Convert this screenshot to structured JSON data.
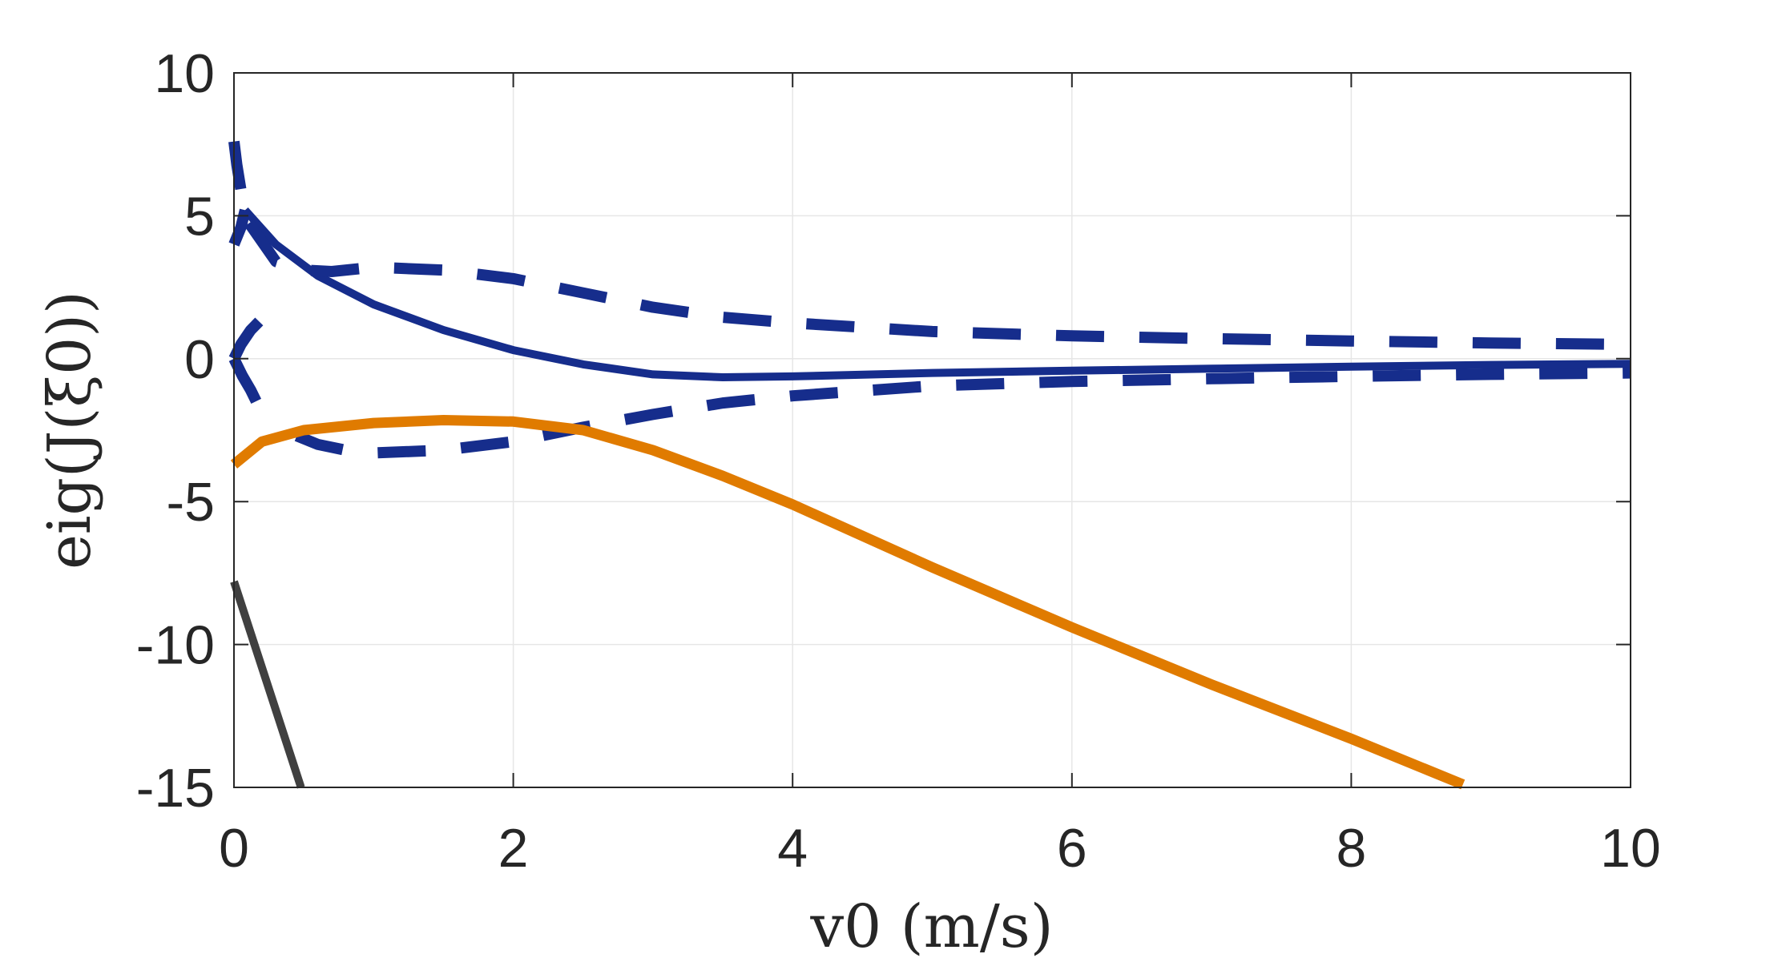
{
  "chart_data": {
    "type": "line",
    "title": "",
    "xlabel": "v0 (m/s)",
    "ylabel": "eig(J(ξ0))",
    "xlim": [
      0,
      10
    ],
    "ylim": [
      -15,
      10
    ],
    "xticks": [
      0,
      2,
      4,
      6,
      8,
      10
    ],
    "yticks": [
      -15,
      -10,
      -5,
      0,
      5,
      10
    ],
    "xtick_labels": [
      "0",
      "2",
      "4",
      "6",
      "8",
      "10"
    ],
    "ytick_labels": [
      "-15",
      "-10",
      "-5",
      "0",
      "5",
      "10"
    ],
    "grid": true,
    "series": [
      {
        "name": "blue-solid",
        "color": "#162d8c",
        "style": "solid",
        "x": [
          0.08,
          0.3,
          0.6,
          1.0,
          1.5,
          2.0,
          2.5,
          3.0,
          3.5,
          4.0,
          5.0,
          6.0,
          7.0,
          8.0,
          9.0,
          10.0
        ],
        "y": [
          5.2,
          4.0,
          2.9,
          1.9,
          1.0,
          0.3,
          -0.2,
          -0.55,
          -0.65,
          -0.62,
          -0.5,
          -0.42,
          -0.35,
          -0.28,
          -0.22,
          -0.18
        ]
      },
      {
        "name": "blue-dashed-upper",
        "color": "#162d8c",
        "style": "dashed",
        "x": [
          0.0,
          0.02,
          0.05,
          0.08,
          0.1,
          0.3,
          0.5,
          0.7,
          1.0,
          1.5,
          2.0,
          2.5,
          3.0,
          3.5,
          4.0,
          5.0,
          6.0,
          7.0,
          8.0,
          9.0,
          10.0
        ],
        "y": [
          7.6,
          6.8,
          5.9,
          5.2,
          4.8,
          3.4,
          3.1,
          3.05,
          3.2,
          3.1,
          2.8,
          2.3,
          1.8,
          1.45,
          1.25,
          0.95,
          0.8,
          0.7,
          0.62,
          0.55,
          0.5
        ]
      },
      {
        "name": "blue-dashed-upper-branch",
        "color": "#162d8c",
        "style": "dashed",
        "x": [
          0.0,
          0.05,
          0.08
        ],
        "y": [
          4.0,
          4.6,
          5.2
        ]
      },
      {
        "name": "blue-dashed-middle",
        "color": "#162d8c",
        "style": "dashed",
        "x": [
          0.0,
          0.06,
          0.12,
          0.16,
          0.18
        ],
        "y": [
          0.0,
          -0.6,
          -1.1,
          -1.5,
          -1.7
        ]
      },
      {
        "name": "blue-dashed-middle-top",
        "color": "#162d8c",
        "style": "dashed",
        "x": [
          0.0,
          0.05,
          0.12,
          0.18
        ],
        "y": [
          0.0,
          0.5,
          1.0,
          1.3
        ]
      },
      {
        "name": "blue-dashed-lower",
        "color": "#162d8c",
        "style": "dashed",
        "x": [
          0.45,
          0.6,
          0.8,
          1.0,
          1.5,
          2.0,
          2.5,
          3.0,
          3.5,
          4.0,
          5.0,
          6.0,
          7.0,
          8.0,
          9.0,
          10.0
        ],
        "y": [
          -2.7,
          -3.0,
          -3.2,
          -3.3,
          -3.2,
          -2.9,
          -2.4,
          -1.95,
          -1.55,
          -1.3,
          -0.95,
          -0.8,
          -0.7,
          -0.62,
          -0.55,
          -0.5
        ]
      },
      {
        "name": "orange",
        "color": "#e07b00",
        "style": "solid",
        "x": [
          0.0,
          0.2,
          0.5,
          1.0,
          1.5,
          2.0,
          2.5,
          3.0,
          3.5,
          4.0,
          5.0,
          6.0,
          7.0,
          8.0,
          8.8
        ],
        "y": [
          -3.7,
          -2.9,
          -2.5,
          -2.25,
          -2.15,
          -2.2,
          -2.5,
          -3.2,
          -4.1,
          -5.1,
          -7.3,
          -9.4,
          -11.4,
          -13.3,
          -14.9
        ]
      },
      {
        "name": "gray",
        "color": "#404040",
        "style": "solid",
        "x": [
          0.0,
          0.48
        ],
        "y": [
          -7.8,
          -15.0
        ]
      }
    ]
  }
}
